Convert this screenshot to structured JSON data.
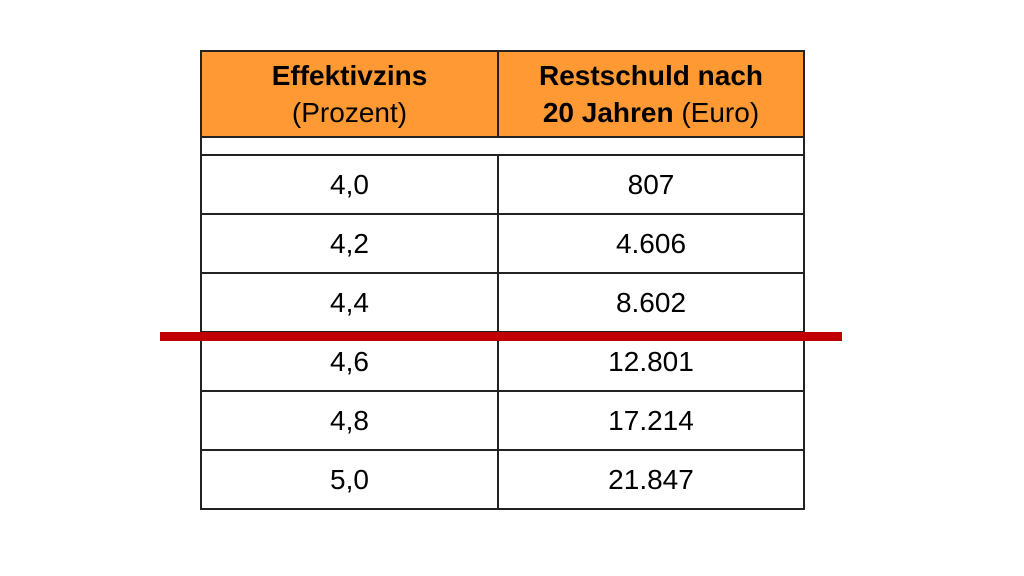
{
  "table": {
    "headers": [
      {
        "bold": "Effektivzins",
        "bold_suffix": "",
        "normal": "(Prozent)"
      },
      {
        "bold": "Restschuld nach",
        "bold2": "20 Jahren",
        "normal": "(Euro)"
      }
    ],
    "rows": [
      {
        "zins": "4,0",
        "restschuld": "807"
      },
      {
        "zins": "4,2",
        "restschuld": "4.606"
      },
      {
        "zins": "4,4",
        "restschuld": "8.602"
      },
      {
        "zins": "4,6",
        "restschuld": "12.801"
      },
      {
        "zins": "4,8",
        "restschuld": "17.214"
      },
      {
        "zins": "5,0",
        "restschuld": "21.847"
      }
    ]
  },
  "colors": {
    "header_background": "#ff9933",
    "threshold_line": "#c00000",
    "border": "#222222"
  }
}
